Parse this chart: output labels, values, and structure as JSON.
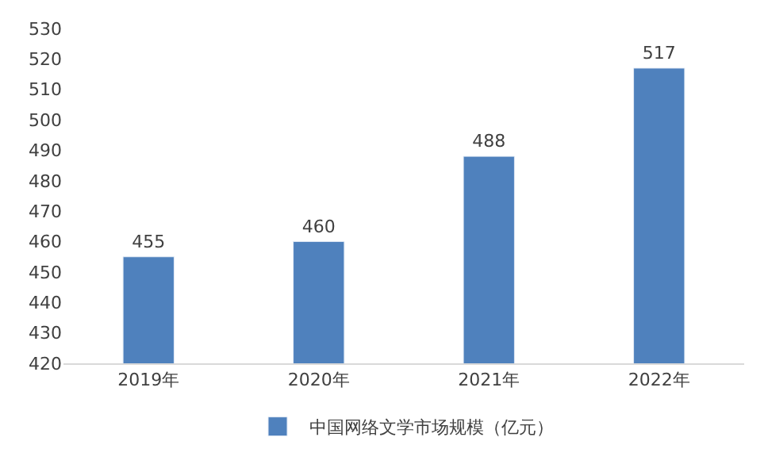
{
  "chart_data": {
    "type": "bar",
    "categories": [
      "2019年",
      "2020年",
      "2021年",
      "2022年"
    ],
    "series": [
      {
        "name": "中国网络文学市场规模（亿元）",
        "color": "#4f81bd",
        "values": [
          455,
          460,
          488,
          517
        ]
      }
    ],
    "ylim": [
      420,
      530
    ],
    "yticks": [
      420,
      430,
      440,
      450,
      460,
      470,
      480,
      490,
      500,
      510,
      520,
      530
    ],
    "data_labels": true,
    "grid": false,
    "legend": "bottom"
  }
}
